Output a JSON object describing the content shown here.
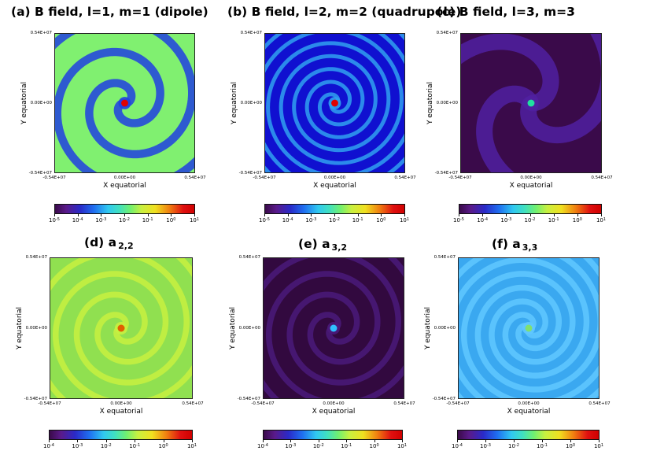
{
  "chart_data": [
    {
      "panel": "a",
      "type": "heatmap",
      "title": "(a) B field, l=1, m=1 (dipole)",
      "xlabel": "X equatorial",
      "ylabel": "Y equatorial",
      "xlim": [
        -5400000,
        5400000
      ],
      "ylim": [
        -5400000,
        5400000
      ],
      "xticks": [
        "-0.54E+07",
        "0.00E+00",
        "0.54E+07"
      ],
      "yticks": [
        "0.54E+07",
        "0.00E+00",
        "-0.54E+07"
      ],
      "colorbar": {
        "scale": "log",
        "exponents": [
          "-5",
          "-4",
          "-3",
          "-2",
          "-1",
          "0",
          "1"
        ],
        "base": "10"
      },
      "pattern": {
        "spiral_arms": 2,
        "background_color": "#80f070",
        "arm_color": "#2040e0",
        "center_color": "#e00000",
        "arm_count_turns": 1.6
      }
    },
    {
      "panel": "b",
      "type": "heatmap",
      "title": "(b) B field, l=2, m=2 (quadrupole)",
      "xlabel": "X equatorial",
      "ylabel": "Y equatorial",
      "xlim": [
        -5400000,
        5400000
      ],
      "ylim": [
        -5400000,
        5400000
      ],
      "xticks": [
        "-0.54E+07",
        "0.00E+00",
        "0.54E+07"
      ],
      "yticks": [
        "0.54E+07",
        "0.00E+00",
        "-0.54E+07"
      ],
      "colorbar": {
        "scale": "log",
        "exponents": [
          "-5",
          "-4",
          "-3",
          "-2",
          "-1",
          "0",
          "1"
        ],
        "base": "10"
      },
      "pattern": {
        "spiral_arms": 2,
        "background_color": "#1010d0",
        "arm_color": "#30a0f0",
        "center_color": "#e00000",
        "arm_count_turns": 4
      }
    },
    {
      "panel": "c",
      "type": "heatmap",
      "title": "(c) B field, l=3, m=3",
      "xlabel": "X equatorial",
      "ylabel": "Y equatorial",
      "xlim": [
        -5400000,
        5400000
      ],
      "ylim": [
        -5400000,
        5400000
      ],
      "xticks": [
        "-0.54E+07",
        "0.00E+00",
        "0.54E+07"
      ],
      "yticks": [
        "0.54E+07",
        "0.00E+00",
        "-0.54E+07"
      ],
      "colorbar": {
        "scale": "log",
        "exponents": [
          "-5",
          "-4",
          "-3",
          "-2",
          "-1",
          "0",
          "1"
        ],
        "base": "10"
      },
      "pattern": {
        "spiral_arms": 3,
        "background_color": "#3a0a4a",
        "arm_color": "#5020a0",
        "center_color": "#20e0a0",
        "arm_count_turns": 0.5
      }
    },
    {
      "panel": "d",
      "type": "heatmap",
      "title": "(d) a",
      "title_sub": "2,2",
      "xlabel": "X equatorial",
      "ylabel": "Y equatorial",
      "xlim": [
        -5400000,
        5400000
      ],
      "ylim": [
        -5400000,
        5400000
      ],
      "xticks": [
        "-0.54E+07",
        "0.00E+00",
        "0.54E+07"
      ],
      "yticks": [
        "0.54E+07",
        "0.00E+00",
        "-0.54E+07"
      ],
      "colorbar": {
        "scale": "log",
        "exponents": [
          "-4",
          "-3",
          "-2",
          "-1",
          "0",
          "1"
        ],
        "base": "10"
      },
      "pattern": {
        "spiral_arms": 2,
        "background_color": "#90e050",
        "arm_color": "#c8f040",
        "center_color": "#e06000",
        "arm_count_turns": 2.5
      }
    },
    {
      "panel": "e",
      "type": "heatmap",
      "title": "(e) a",
      "title_sub": "3,2",
      "xlabel": "X equatorial",
      "ylabel": "Y equatorial",
      "xlim": [
        -5400000,
        5400000
      ],
      "ylim": [
        -5400000,
        5400000
      ],
      "xticks": [
        "-0.54E+07",
        "0.00E+00",
        "0.54E+07"
      ],
      "yticks": [
        "0.54E+07",
        "0.00E+00",
        "-0.54E+07"
      ],
      "colorbar": {
        "scale": "log",
        "exponents": [
          "-4",
          "-3",
          "-2",
          "-1",
          "0",
          "1"
        ],
        "base": "10"
      },
      "pattern": {
        "spiral_arms": 2,
        "background_color": "#32093f",
        "arm_color": "#4a1a7a",
        "center_color": "#30c0ff",
        "arm_count_turns": 2.5
      }
    },
    {
      "panel": "f",
      "type": "heatmap",
      "title": "(f) a",
      "title_sub": "3,3",
      "xlabel": "X equatorial",
      "ylabel": "Y equatorial",
      "xlim": [
        -5400000,
        5400000
      ],
      "ylim": [
        -5400000,
        5400000
      ],
      "xticks": [
        "-0.54E+07",
        "0.00E+00",
        "0.54E+07"
      ],
      "yticks": [
        "0.54E+07",
        "0.00E+00",
        "-0.54E+07"
      ],
      "colorbar": {
        "scale": "log",
        "exponents": [
          "-4",
          "-3",
          "-2",
          "-1",
          "0",
          "1"
        ],
        "base": "10"
      },
      "pattern": {
        "spiral_arms": 3,
        "background_color": "#3aa8f0",
        "arm_color": "#60c8ff",
        "center_color": "#80e070",
        "arm_count_turns": 2.5
      }
    }
  ]
}
